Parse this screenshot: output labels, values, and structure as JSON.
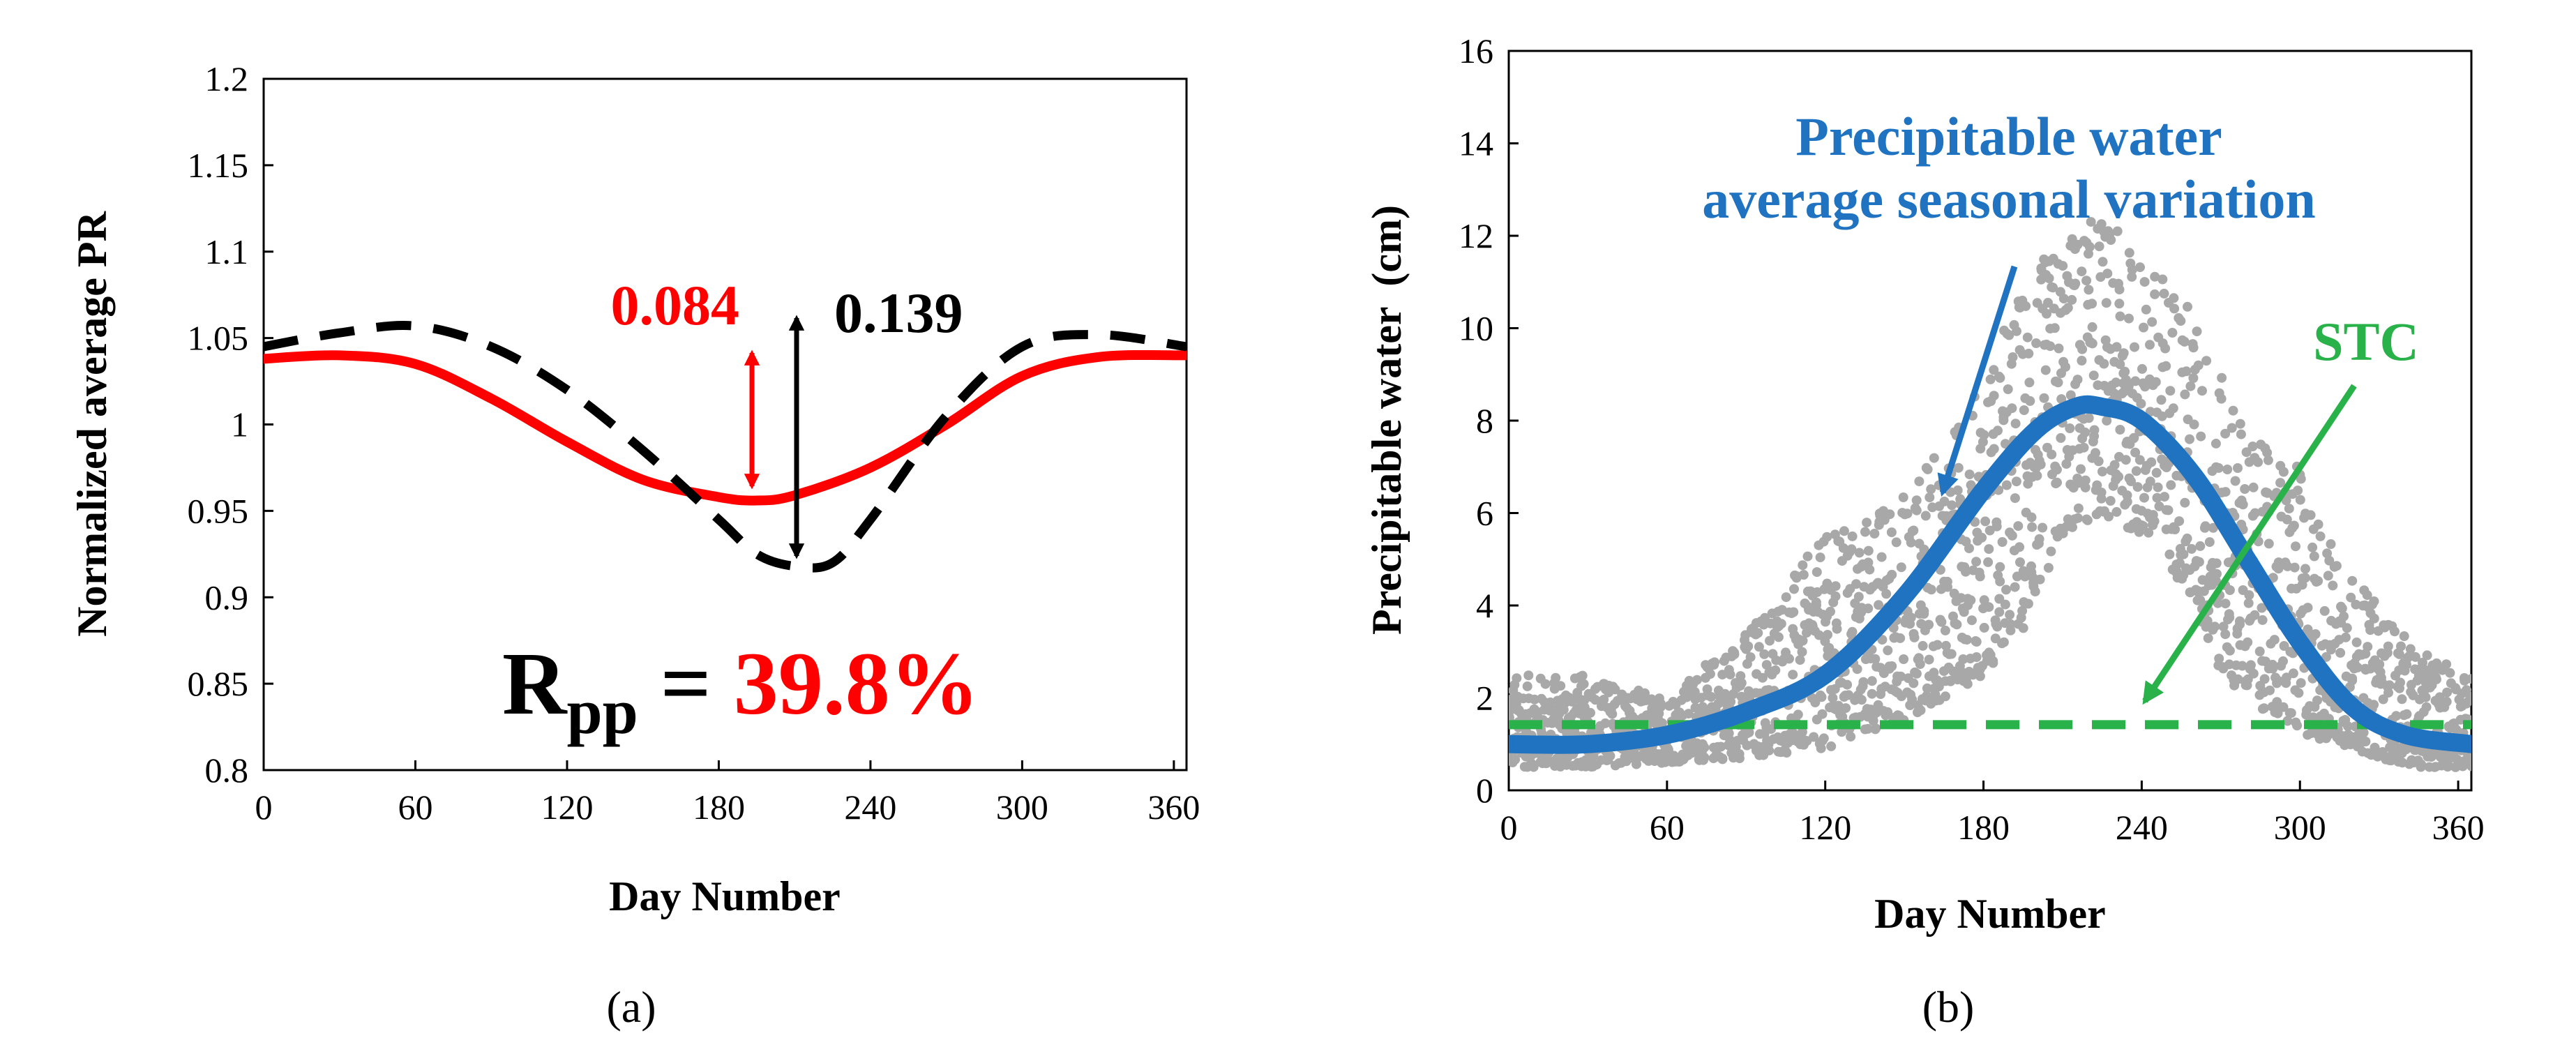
{
  "chart_data": [
    {
      "panel_label": "(a)",
      "type": "line",
      "xlabel": "Day Number",
      "ylabel": "Normalized average PR",
      "xlim": [
        0,
        365
      ],
      "ylim": [
        0.8,
        1.2
      ],
      "xticks": [
        "0",
        "60",
        "120",
        "180",
        "240",
        "300",
        "360"
      ],
      "yticks": [
        "0.8",
        "0.85",
        "0.9",
        "0.95",
        "1",
        "1.05",
        "1.1",
        "1.15",
        "1.2"
      ],
      "series": [
        {
          "name": "red-solid",
          "color": "#ff0000",
          "style": "solid",
          "x": [
            0,
            30,
            60,
            90,
            120,
            150,
            180,
            195,
            210,
            240,
            270,
            300,
            330,
            365
          ],
          "y": [
            1.038,
            1.04,
            1.035,
            1.015,
            0.99,
            0.968,
            0.958,
            0.956,
            0.959,
            0.975,
            1.0,
            1.028,
            1.039,
            1.04
          ]
        },
        {
          "name": "black-dashed",
          "color": "#000000",
          "style": "dashed",
          "x": [
            0,
            30,
            60,
            90,
            120,
            150,
            180,
            195,
            210,
            225,
            240,
            270,
            300,
            330,
            365
          ],
          "y": [
            1.045,
            1.053,
            1.057,
            1.045,
            1.02,
            0.985,
            0.945,
            0.925,
            0.918,
            0.92,
            0.945,
            1.005,
            1.045,
            1.052,
            1.045
          ]
        }
      ],
      "annotations": {
        "red_amplitude": "0.084",
        "black_amplitude": "0.139",
        "rpp_main": "R",
        "rpp_sub": "pp",
        "rpp_equals": " = ",
        "rpp_value": "39.8%"
      },
      "colors": {
        "red": "#ff0000",
        "black": "#000000"
      }
    },
    {
      "panel_label": "(b)",
      "type": "scatter",
      "xlabel": "Day Number",
      "ylabel": "Precipitable water  (cm)",
      "xlim": [
        0,
        365
      ],
      "ylim": [
        0,
        16
      ],
      "xticks": [
        "0",
        "60",
        "120",
        "180",
        "240",
        "300",
        "360"
      ],
      "yticks": [
        "0",
        "2",
        "4",
        "6",
        "8",
        "10",
        "12",
        "14",
        "16"
      ],
      "scatter_envelope": {
        "x": [
          0,
          30,
          60,
          90,
          120,
          150,
          165,
          180,
          195,
          210,
          225,
          240,
          255,
          270,
          285,
          300,
          315,
          330,
          345,
          365
        ],
        "low": [
          0.5,
          0.5,
          0.6,
          0.7,
          0.9,
          1.5,
          2.0,
          2.5,
          3.5,
          5.5,
          6.0,
          5.5,
          4.5,
          2.5,
          1.8,
          1.2,
          1.0,
          0.7,
          0.5,
          0.5
        ],
        "high": [
          2.5,
          2.5,
          2.0,
          3.5,
          5.5,
          6.5,
          7.5,
          9.0,
          11.0,
          12.0,
          12.5,
          11.5,
          11.0,
          9.0,
          7.5,
          7.0,
          5.0,
          4.0,
          3.0,
          2.5
        ]
      },
      "series": [
        {
          "name": "average seasonal variation",
          "color": "#1f73c0",
          "style": "solid",
          "x": [
            0,
            30,
            60,
            90,
            120,
            150,
            180,
            200,
            215,
            225,
            240,
            260,
            280,
            300,
            320,
            340,
            365
          ],
          "y": [
            1.0,
            1.0,
            1.2,
            1.7,
            2.5,
            4.2,
            6.5,
            7.8,
            8.3,
            8.3,
            8.0,
            6.8,
            5.0,
            3.2,
            1.8,
            1.2,
            1.0
          ]
        },
        {
          "name": "STC",
          "color": "#2ab24a",
          "style": "dashed",
          "x": [
            0,
            365
          ],
          "y": [
            1.42,
            1.42
          ]
        }
      ],
      "annotations": {
        "pw_line1": "Precipitable water",
        "pw_line2": "average seasonal variation",
        "stc": "STC"
      },
      "colors": {
        "blue": "#1f73c0",
        "green": "#2ab24a",
        "scatter": "#a8a8a8"
      }
    }
  ]
}
